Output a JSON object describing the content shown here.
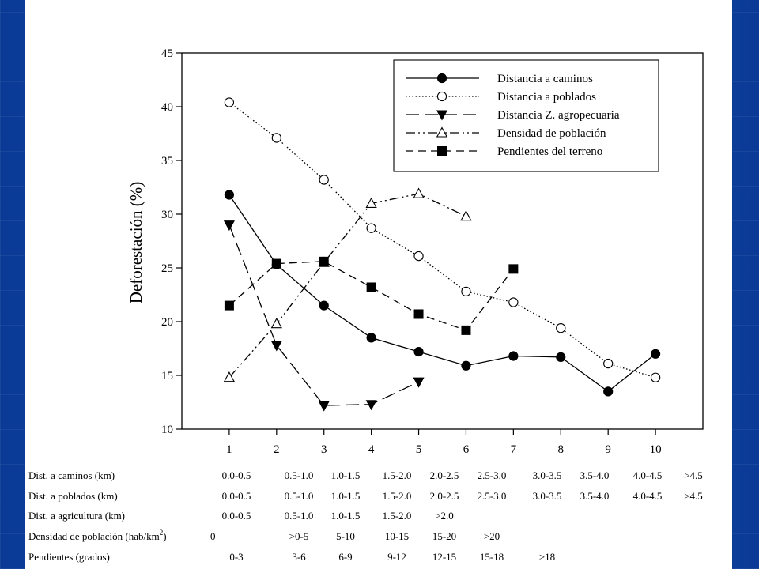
{
  "chart_data": {
    "type": "line",
    "title": "",
    "xlabel": "",
    "ylabel": "Deforestación (%)",
    "xlim": [
      0,
      11
    ],
    "ylim": [
      10,
      45
    ],
    "x_ticks": [
      1,
      2,
      3,
      4,
      5,
      6,
      7,
      8,
      9,
      10
    ],
    "y_ticks": [
      10,
      15,
      20,
      25,
      30,
      35,
      40,
      45
    ],
    "grid": false,
    "legend_position": "top-right",
    "series": [
      {
        "name": "Distancia a caminos",
        "line_style": "solid",
        "marker": "filled-circle",
        "x": [
          1,
          2,
          3,
          4,
          5,
          6,
          7,
          8,
          9,
          10
        ],
        "y": [
          31.8,
          25.3,
          21.5,
          18.5,
          17.2,
          15.9,
          16.8,
          16.7,
          13.5,
          17.0
        ]
      },
      {
        "name": "Distancia a poblados",
        "line_style": "dotted",
        "marker": "open-circle",
        "x": [
          1,
          2,
          3,
          4,
          5,
          6,
          7,
          8,
          9,
          10
        ],
        "y": [
          40.4,
          37.1,
          33.2,
          28.7,
          26.1,
          22.8,
          21.8,
          19.4,
          16.1,
          14.8
        ]
      },
      {
        "name": "Distancia Z. agropecuaria",
        "line_style": "long-dash",
        "marker": "filled-triangle-down",
        "x": [
          1,
          2,
          3,
          4,
          5
        ],
        "y": [
          29.0,
          17.8,
          12.2,
          12.3,
          14.4
        ]
      },
      {
        "name": "Densidad de población",
        "line_style": "dash-dot-dot",
        "marker": "open-triangle-up",
        "x": [
          1,
          2,
          3,
          4,
          5,
          6
        ],
        "y": [
          14.8,
          19.8,
          25.5,
          31.0,
          31.9,
          29.8
        ]
      },
      {
        "name": "Pendientes del terreno",
        "line_style": "dash",
        "marker": "filled-square",
        "x": [
          1,
          2,
          3,
          4,
          5,
          6,
          7
        ],
        "y": [
          21.5,
          25.4,
          25.6,
          23.2,
          20.7,
          19.2,
          24.9
        ]
      }
    ],
    "category_table": [
      {
        "label": "Dist. a caminos (km)",
        "values": [
          "0.0-0.5",
          "0.5-1.0",
          "1.0-1.5",
          "1.5-2.0",
          "2.0-2.5",
          "2.5-3.0",
          "3.0-3.5",
          "3.5-4.0",
          "4.0-4.5",
          ">4.5"
        ]
      },
      {
        "label": "Dist. a poblados (km)",
        "values": [
          "0.0-0.5",
          "0.5-1.0",
          "1.0-1.5",
          "1.5-2.0",
          "2.0-2.5",
          "2.5-3.0",
          "3.0-3.5",
          "3.5-4.0",
          "4.0-4.5",
          ">4.5"
        ]
      },
      {
        "label": "Dist.  a agricultura (km)",
        "values": [
          "0.0-0.5",
          "0.5-1.0",
          "1.0-1.5",
          "1.5-2.0",
          ">2.0"
        ]
      },
      {
        "label": "Densidad de población (hab/km",
        "label_sup": "2",
        "label_end": ")",
        "values": [
          "0",
          ">0-5",
          "5-10",
          "10-15",
          "15-20",
          ">20"
        ]
      },
      {
        "label": "Pendientes (grados)",
        "values": [
          "0-3",
          "3-6",
          "6-9",
          "9-12",
          "12-15",
          "15-18",
          ">18"
        ]
      }
    ]
  }
}
